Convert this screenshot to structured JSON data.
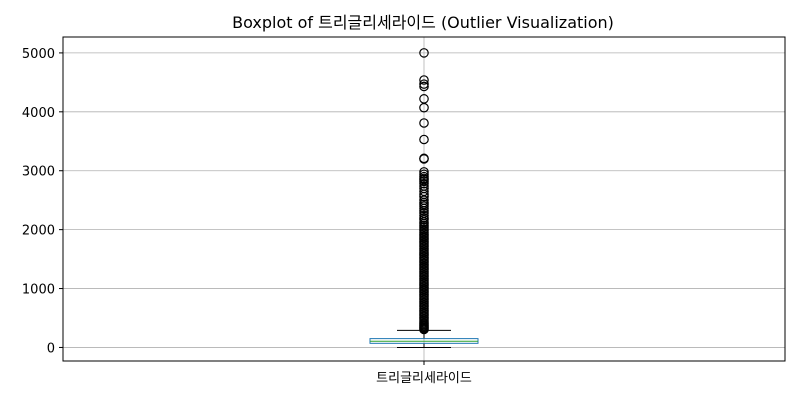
{
  "chart_data": {
    "type": "boxplot",
    "title": "Boxplot of 트리글리세라이드 (Outlier Visualization)",
    "xlabel": "",
    "ylabel": "",
    "categories": [
      "트리글리세라이드"
    ],
    "ylim": [
      -230,
      5270
    ],
    "yticks": [
      0,
      1000,
      2000,
      3000,
      4000,
      5000
    ],
    "grid": true,
    "box": {
      "whisker_low": 0,
      "q1": 70,
      "median": 105,
      "q3": 150,
      "whisker_high": 290
    },
    "outliers": [
      5000,
      4540,
      4470,
      4430,
      4220,
      4070,
      3810,
      3530,
      3210,
      3200,
      2980,
      2940,
      2900,
      2870,
      2850,
      2820,
      2780,
      2740,
      2700,
      2650,
      2600,
      2560,
      2500,
      2460,
      2430,
      2400,
      2360,
      2320,
      2280,
      2240,
      2200,
      2170,
      2130,
      2100,
      2070,
      2040,
      2010,
      1980,
      1950,
      1920,
      1890,
      1860,
      1830,
      1800,
      1770,
      1740,
      1710,
      1680,
      1650,
      1620,
      1590,
      1560,
      1530,
      1500,
      1470,
      1440,
      1410,
      1380,
      1350,
      1320,
      1290,
      1260,
      1230,
      1200,
      1170,
      1140,
      1110,
      1080,
      1050,
      1020,
      990,
      960,
      930,
      900,
      870,
      840,
      810,
      780,
      750,
      720,
      690,
      660,
      630,
      600,
      570,
      540,
      510,
      480,
      450,
      420,
      400,
      380,
      360,
      340,
      320,
      305
    ],
    "colors": {
      "box": "#1f77b4",
      "median": "#2ca02c",
      "whisker": "#000000",
      "grid": "#b0b0b0"
    }
  }
}
